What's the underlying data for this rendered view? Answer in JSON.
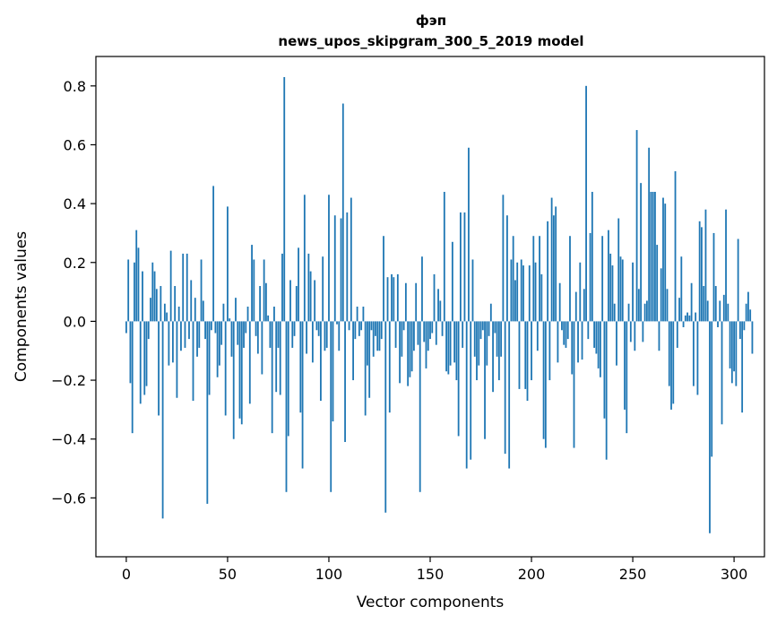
{
  "chart_data": {
    "type": "bar",
    "title": "фэп",
    "subtitle": "news_upos_skipgram_300_5_2019 model",
    "xlabel": "Vector components",
    "ylabel": "Components values",
    "xlim": [
      -15,
      315
    ],
    "ylim": [
      -0.8,
      0.9
    ],
    "xticks": [
      0,
      50,
      100,
      150,
      200,
      250,
      300
    ],
    "yticks": [
      -0.6,
      -0.4,
      -0.2,
      0.0,
      0.2,
      0.4,
      0.6,
      0.8
    ],
    "ytick_labels": [
      "−0.6",
      "−0.4",
      "−0.2",
      "0.0",
      "0.2",
      "0.4",
      "0.6",
      "0.8"
    ],
    "bar_color": "#1f77b4",
    "grid": false,
    "values": [
      -0.04,
      0.21,
      -0.21,
      -0.38,
      0.2,
      0.31,
      0.25,
      -0.28,
      0.17,
      -0.25,
      -0.22,
      -0.06,
      0.08,
      0.2,
      0.17,
      0.11,
      -0.32,
      0.12,
      -0.67,
      0.06,
      0.03,
      -0.15,
      0.24,
      -0.14,
      0.12,
      -0.26,
      0.05,
      -0.1,
      0.23,
      -0.09,
      0.23,
      -0.06,
      0.14,
      -0.27,
      0.08,
      -0.12,
      -0.09,
      0.21,
      0.07,
      -0.06,
      -0.62,
      -0.25,
      -0.03,
      0.46,
      -0.04,
      -0.19,
      -0.15,
      -0.08,
      0.06,
      -0.32,
      0.39,
      0.01,
      -0.12,
      -0.4,
      0.08,
      -0.08,
      -0.33,
      -0.35,
      -0.09,
      -0.04,
      0.05,
      -0.28,
      0.26,
      0.21,
      -0.05,
      -0.11,
      0.12,
      -0.18,
      0.21,
      0.13,
      0.02,
      -0.09,
      -0.38,
      0.05,
      -0.24,
      -0.09,
      -0.25,
      0.23,
      0.83,
      -0.58,
      -0.39,
      0.14,
      -0.09,
      -0.05,
      0.12,
      0.25,
      -0.31,
      -0.5,
      0.43,
      -0.11,
      0.23,
      0.17,
      -0.14,
      0.14,
      -0.03,
      -0.05,
      -0.27,
      0.22,
      -0.1,
      -0.09,
      0.43,
      -0.58,
      -0.34,
      0.36,
      -0.01,
      -0.1,
      0.35,
      0.74,
      -0.41,
      0.37,
      -0.03,
      0.42,
      -0.2,
      -0.06,
      0.05,
      -0.05,
      -0.03,
      0.05,
      -0.32,
      -0.15,
      -0.26,
      -0.03,
      -0.12,
      -0.05,
      -0.1,
      -0.1,
      -0.06,
      0.29,
      -0.65,
      0.15,
      -0.31,
      0.16,
      0.15,
      -0.09,
      0.16,
      -0.21,
      -0.12,
      -0.03,
      0.13,
      -0.22,
      -0.19,
      -0.17,
      -0.1,
      0.13,
      -0.08,
      -0.58,
      0.22,
      -0.07,
      -0.16,
      -0.1,
      -0.06,
      -0.04,
      0.16,
      -0.08,
      0.11,
      0.07,
      -0.05,
      0.44,
      -0.17,
      -0.18,
      -0.15,
      0.27,
      -0.14,
      -0.2,
      -0.39,
      0.37,
      -0.09,
      0.37,
      -0.5,
      0.59,
      -0.47,
      0.21,
      -0.12,
      -0.2,
      -0.15,
      -0.06,
      -0.03,
      -0.4,
      -0.15,
      -0.05,
      0.06,
      -0.24,
      -0.04,
      -0.12,
      -0.2,
      -0.12,
      0.43,
      -0.45,
      0.36,
      -0.5,
      0.21,
      0.29,
      0.14,
      0.2,
      -0.23,
      0.21,
      0.19,
      -0.23,
      -0.27,
      0.19,
      -0.2,
      0.29,
      0.2,
      -0.1,
      0.29,
      0.16,
      -0.4,
      -0.43,
      0.34,
      -0.2,
      0.42,
      0.36,
      0.39,
      -0.14,
      0.13,
      -0.03,
      -0.08,
      -0.09,
      -0.06,
      0.29,
      -0.18,
      -0.43,
      0.1,
      -0.14,
      0.2,
      -0.13,
      0.11,
      0.8,
      -0.06,
      0.3,
      0.44,
      -0.09,
      -0.11,
      -0.16,
      -0.19,
      0.29,
      -0.33,
      -0.47,
      0.31,
      0.23,
      0.19,
      0.06,
      -0.15,
      0.35,
      0.22,
      0.21,
      -0.3,
      -0.38,
      0.06,
      -0.07,
      0.2,
      -0.1,
      0.65,
      0.11,
      0.47,
      -0.07,
      0.06,
      0.07,
      0.59,
      0.44,
      0.44,
      0.44,
      0.26,
      -0.1,
      0.18,
      0.42,
      0.4,
      0.11,
      -0.22,
      -0.3,
      -0.28,
      0.51,
      -0.09,
      0.08,
      0.22,
      -0.02,
      0.02,
      0.03,
      0.02,
      0.13,
      -0.22,
      0.03,
      -0.25,
      0.34,
      0.32,
      0.12,
      0.38,
      0.07,
      -0.72,
      -0.46,
      0.3,
      0.12,
      -0.02,
      0.07,
      -0.35,
      0.09,
      0.38,
      0.06,
      -0.16,
      -0.21,
      -0.17,
      -0.22,
      0.28,
      -0.06,
      -0.31,
      -0.03,
      0.06,
      0.1,
      0.04,
      -0.11
    ]
  }
}
